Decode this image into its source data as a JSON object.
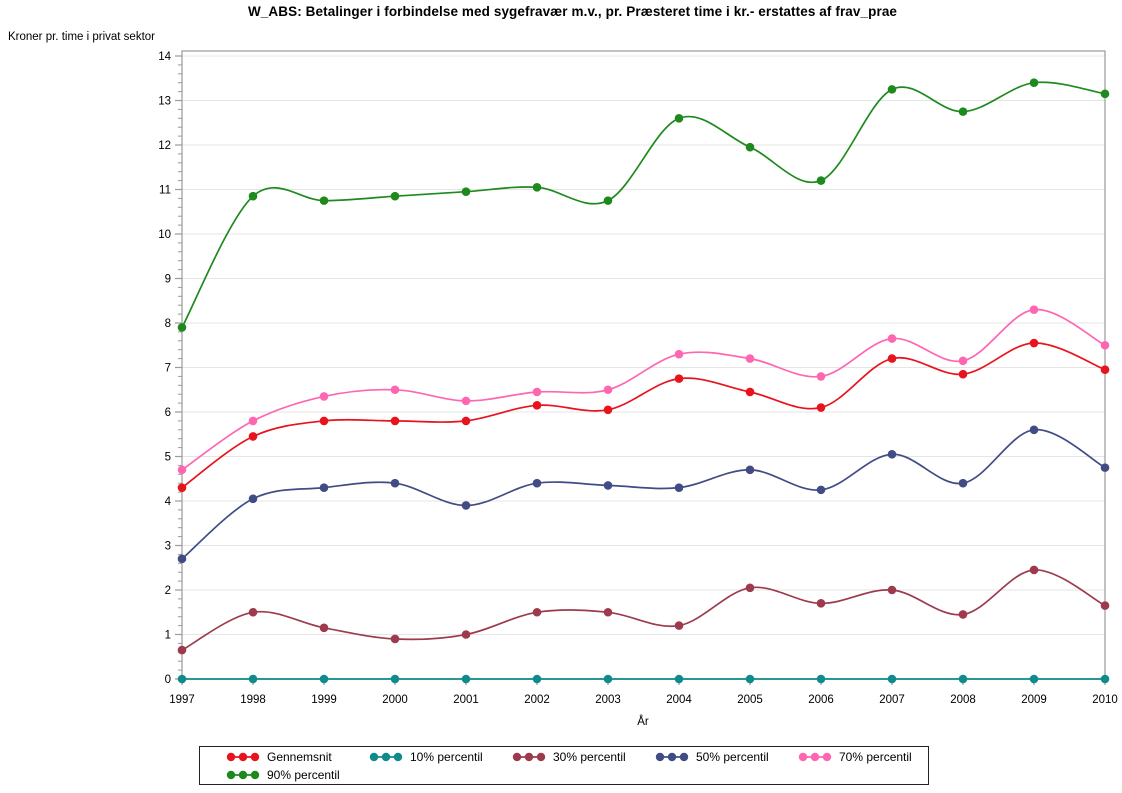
{
  "chart_data": {
    "type": "line",
    "title": "W_ABS: Betalinger i forbindelse med sygefravær m.v., pr. Præsteret time i kr.- erstattes af frav_prae",
    "ylabel": "Kroner pr. time i privat sektor",
    "xlabel": "År",
    "x": [
      "1997",
      "1998",
      "1999",
      "2000",
      "2001",
      "2002",
      "2003",
      "2004",
      "2005",
      "2006",
      "2007",
      "2008",
      "2009",
      "2010"
    ],
    "ylim": [
      0,
      14
    ],
    "yticks": [
      0,
      1,
      2,
      3,
      4,
      5,
      6,
      7,
      8,
      9,
      10,
      11,
      12,
      13,
      14
    ],
    "grid": "horizontal-only",
    "legend_position": "bottom",
    "marker_style": "filled-circle",
    "line_style": "smooth-spline",
    "series": [
      {
        "name": "Gennemsnit",
        "color": "#e8131c",
        "values": [
          4.3,
          5.45,
          5.8,
          5.8,
          5.8,
          6.15,
          6.05,
          6.75,
          6.45,
          6.1,
          7.2,
          6.85,
          7.55,
          6.95
        ]
      },
      {
        "name": "10% percentil",
        "color": "#0f8b8b",
        "values": [
          0,
          0,
          0,
          0,
          0,
          0,
          0,
          0,
          0,
          0,
          0,
          0,
          0,
          0
        ]
      },
      {
        "name": "30% percentil",
        "color": "#9d3a4d",
        "values": [
          0.65,
          1.5,
          1.15,
          0.9,
          1.0,
          1.5,
          1.5,
          1.2,
          2.05,
          1.7,
          2.0,
          1.45,
          2.45,
          1.65
        ]
      },
      {
        "name": "50% percentil",
        "color": "#414c85",
        "values": [
          2.7,
          4.05,
          4.3,
          4.4,
          3.9,
          4.4,
          4.35,
          4.3,
          4.7,
          4.25,
          5.05,
          4.4,
          5.6,
          4.75
        ]
      },
      {
        "name": "70% percentil",
        "color": "#ff66b2",
        "values": [
          4.7,
          5.8,
          6.35,
          6.5,
          6.25,
          6.45,
          6.5,
          7.3,
          7.2,
          6.8,
          7.65,
          7.15,
          8.3,
          7.5
        ]
      },
      {
        "name": "90% percentil",
        "color": "#1e8a1e",
        "values": [
          7.9,
          10.85,
          10.75,
          10.85,
          10.95,
          11.05,
          10.75,
          12.6,
          11.95,
          11.2,
          13.25,
          12.75,
          13.4,
          13.15
        ]
      }
    ],
    "style": {
      "frame_color": "#9a9a9a",
      "grid_color": "#e5e5e5",
      "tick_color": "#9a9a9a",
      "text_color": "#000000",
      "legend_border_color": "#222222"
    }
  }
}
